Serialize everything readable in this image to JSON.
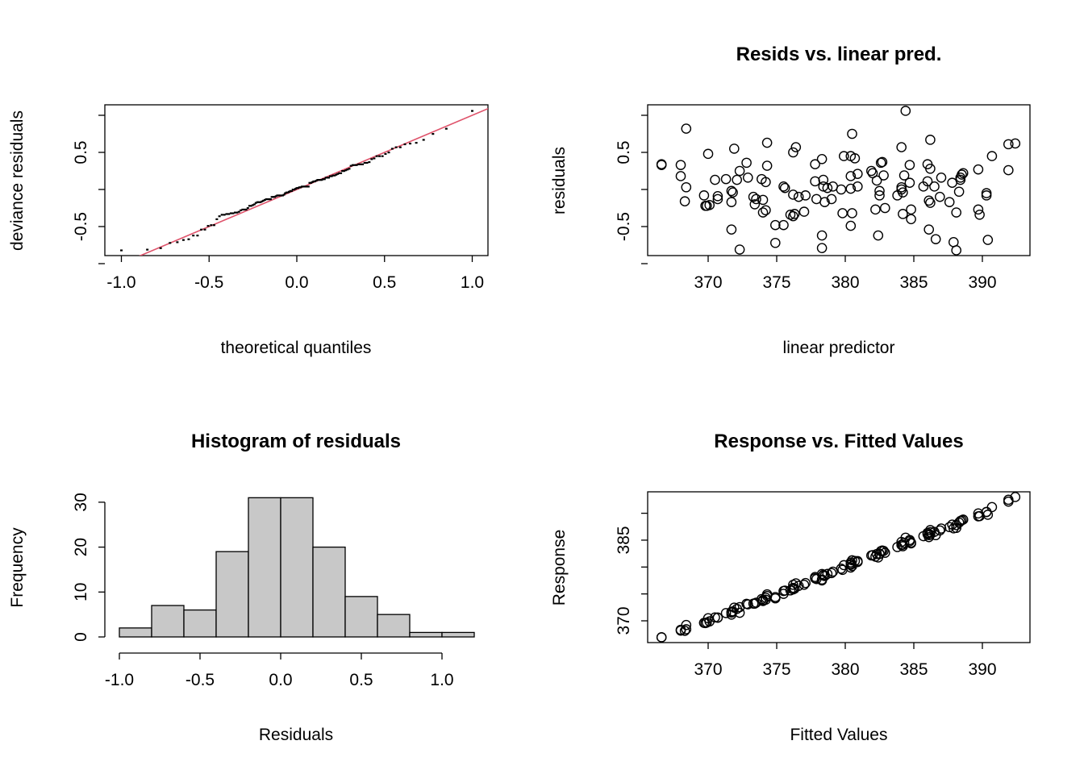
{
  "chart_data": [
    {
      "type": "scatter",
      "title": "",
      "xlabel": "theoretical quantiles",
      "ylabel": "deviance residuals",
      "xlim": [
        -1.09,
        1.09
      ],
      "ylim": [
        -0.89,
        1.14
      ],
      "xticks": [
        "-1.0",
        "-0.5",
        "0.0",
        "0.5",
        "1.0"
      ],
      "xtick_values": [
        -1.0,
        -0.5,
        0.0,
        0.5,
        1.0
      ],
      "yticks": [
        "",
        "-0.5",
        "",
        "0.5",
        ""
      ],
      "ytick_values": [
        -1.0,
        -0.5,
        0.0,
        0.5,
        1.0
      ],
      "reference_line": {
        "intercept": 0.0,
        "slope": 1.0,
        "color": "#DF536B"
      },
      "note": "points are sorted residuals of panel 2 vs normal theoretical quantiles"
    },
    {
      "type": "scatter",
      "title": "Resids vs. linear pred.",
      "xlabel": "linear predictor",
      "ylabel": "residuals",
      "xlim": [
        365.6,
        393.5
      ],
      "ylim": [
        -0.89,
        1.14
      ],
      "xticks": [
        "370",
        "375",
        "380",
        "385",
        "390"
      ],
      "xtick_values": [
        370,
        375,
        380,
        385,
        390
      ],
      "yticks": [
        "",
        "-0.5",
        "",
        "0.5",
        ""
      ],
      "ytick_values": [
        -1.0,
        -0.5,
        0.0,
        0.5,
        1.0
      ],
      "points": [
        [
          366.6,
          0.33
        ],
        [
          366.6,
          0.34
        ],
        [
          368.4,
          0.82
        ],
        [
          368.0,
          0.33
        ],
        [
          368.0,
          0.18
        ],
        [
          368.4,
          0.03
        ],
        [
          368.3,
          -0.16
        ],
        [
          370.0,
          0.48
        ],
        [
          369.7,
          -0.08
        ],
        [
          369.8,
          -0.22
        ],
        [
          369.9,
          -0.22
        ],
        [
          370.1,
          -0.21
        ],
        [
          370.5,
          0.13
        ],
        [
          370.7,
          -0.09
        ],
        [
          370.7,
          -0.13
        ],
        [
          371.3,
          0.14
        ],
        [
          371.7,
          -0.02
        ],
        [
          371.8,
          -0.04
        ],
        [
          371.7,
          -0.17
        ],
        [
          371.7,
          -0.54
        ],
        [
          371.9,
          0.55
        ],
        [
          372.1,
          0.13
        ],
        [
          372.3,
          0.25
        ],
        [
          372.3,
          -0.81
        ],
        [
          372.8,
          0.36
        ],
        [
          372.9,
          0.16
        ],
        [
          373.3,
          -0.1
        ],
        [
          373.4,
          -0.2
        ],
        [
          373.5,
          -0.13
        ],
        [
          373.9,
          0.14
        ],
        [
          374.0,
          -0.14
        ],
        [
          374.0,
          -0.31
        ],
        [
          374.2,
          -0.28
        ],
        [
          374.2,
          0.1
        ],
        [
          374.3,
          0.63
        ],
        [
          374.3,
          0.32
        ],
        [
          374.9,
          -0.72
        ],
        [
          374.9,
          -0.48
        ],
        [
          375.5,
          0.04
        ],
        [
          375.5,
          -0.48
        ],
        [
          375.6,
          0.02
        ],
        [
          376.0,
          -0.34
        ],
        [
          376.2,
          -0.36
        ],
        [
          376.3,
          -0.33
        ],
        [
          376.2,
          0.5
        ],
        [
          376.4,
          0.57
        ],
        [
          376.2,
          -0.07
        ],
        [
          376.6,
          -0.1
        ],
        [
          377.1,
          -0.08
        ],
        [
          377.0,
          -0.3
        ],
        [
          377.8,
          0.34
        ],
        [
          378.3,
          0.41
        ],
        [
          377.8,
          0.11
        ],
        [
          378.4,
          0.13
        ],
        [
          378.4,
          0.04
        ],
        [
          378.7,
          0.02
        ],
        [
          379.1,
          0.04
        ],
        [
          377.9,
          -0.13
        ],
        [
          378.5,
          -0.17
        ],
        [
          379.0,
          -0.13
        ],
        [
          378.3,
          -0.62
        ],
        [
          378.3,
          -0.79
        ],
        [
          379.8,
          -0.32
        ],
        [
          379.7,
          0.0
        ],
        [
          379.9,
          0.45
        ],
        [
          380.4,
          0.45
        ],
        [
          380.7,
          0.42
        ],
        [
          380.5,
          0.75
        ],
        [
          380.4,
          0.18
        ],
        [
          380.9,
          0.21
        ],
        [
          380.4,
          0.01
        ],
        [
          380.9,
          0.04
        ],
        [
          380.5,
          -0.32
        ],
        [
          380.4,
          -0.49
        ],
        [
          381.9,
          0.25
        ],
        [
          382.0,
          0.22
        ],
        [
          382.6,
          0.36
        ],
        [
          382.7,
          0.37
        ],
        [
          382.8,
          0.19
        ],
        [
          382.3,
          0.12
        ],
        [
          382.5,
          -0.02
        ],
        [
          382.5,
          -0.08
        ],
        [
          382.2,
          -0.27
        ],
        [
          382.9,
          -0.25
        ],
        [
          382.4,
          -0.62
        ],
        [
          384.4,
          1.06
        ],
        [
          384.1,
          0.57
        ],
        [
          384.7,
          0.33
        ],
        [
          384.3,
          0.19
        ],
        [
          384.7,
          0.09
        ],
        [
          384.1,
          0.03
        ],
        [
          384.1,
          0.0
        ],
        [
          384.2,
          -0.04
        ],
        [
          383.8,
          -0.08
        ],
        [
          384.2,
          -0.33
        ],
        [
          384.8,
          -0.27
        ],
        [
          384.8,
          -0.4
        ],
        [
          386.2,
          0.67
        ],
        [
          386.0,
          0.34
        ],
        [
          386.2,
          0.28
        ],
        [
          386.0,
          0.11
        ],
        [
          385.7,
          0.04
        ],
        [
          386.5,
          0.04
        ],
        [
          387.0,
          0.16
        ],
        [
          387.8,
          0.09
        ],
        [
          386.9,
          -0.1
        ],
        [
          386.1,
          -0.15
        ],
        [
          386.2,
          -0.18
        ],
        [
          387.6,
          -0.17
        ],
        [
          388.1,
          -0.31
        ],
        [
          388.3,
          -0.03
        ],
        [
          386.1,
          -0.54
        ],
        [
          386.6,
          -0.67
        ],
        [
          387.9,
          -0.71
        ],
        [
          388.1,
          -0.82
        ],
        [
          388.6,
          0.22
        ],
        [
          388.5,
          0.2
        ],
        [
          388.4,
          0.16
        ],
        [
          388.4,
          0.13
        ],
        [
          389.7,
          0.27
        ],
        [
          390.7,
          0.45
        ],
        [
          391.9,
          0.61
        ],
        [
          392.4,
          0.62
        ],
        [
          391.9,
          0.26
        ],
        [
          390.3,
          -0.05
        ],
        [
          390.3,
          -0.08
        ],
        [
          389.7,
          -0.27
        ],
        [
          389.8,
          -0.34
        ],
        [
          390.4,
          -0.68
        ]
      ]
    },
    {
      "type": "bar",
      "title": "Histogram of residuals",
      "xlabel": "Residuals",
      "ylabel": "Frequency",
      "bin_edges": [
        -1.0,
        -0.8,
        -0.6,
        -0.4,
        -0.2,
        0.0,
        0.2,
        0.4,
        0.6,
        0.8,
        1.0,
        1.2
      ],
      "values": [
        2,
        7,
        6,
        19,
        31,
        31,
        20,
        9,
        5,
        1,
        1
      ],
      "bar_color": "#C8C8C8",
      "xticks": [
        "-1.0",
        "-0.5",
        "0.0",
        "0.5",
        "1.0"
      ],
      "xtick_values": [
        -1.0,
        -0.5,
        0.0,
        0.5,
        1.0
      ],
      "yticks": [
        "0",
        "10",
        "20",
        "30"
      ],
      "ytick_values": [
        0,
        10,
        20,
        30
      ]
    },
    {
      "type": "scatter",
      "title": "Response vs. Fitted Values",
      "xlabel": "Fitted Values",
      "ylabel": "Response",
      "xlim": [
        365.6,
        393.5
      ],
      "ylim": [
        366.0,
        394.0
      ],
      "xticks": [
        "370",
        "375",
        "380",
        "385",
        "390"
      ],
      "xtick_values": [
        370,
        375,
        380,
        385,
        390
      ],
      "yticks": [
        "370",
        "",
        "",
        "385",
        ""
      ],
      "ytick_values": [
        370,
        375,
        380,
        385,
        390
      ],
      "note": "response = fitted value + residual for each point of panel 2"
    }
  ]
}
